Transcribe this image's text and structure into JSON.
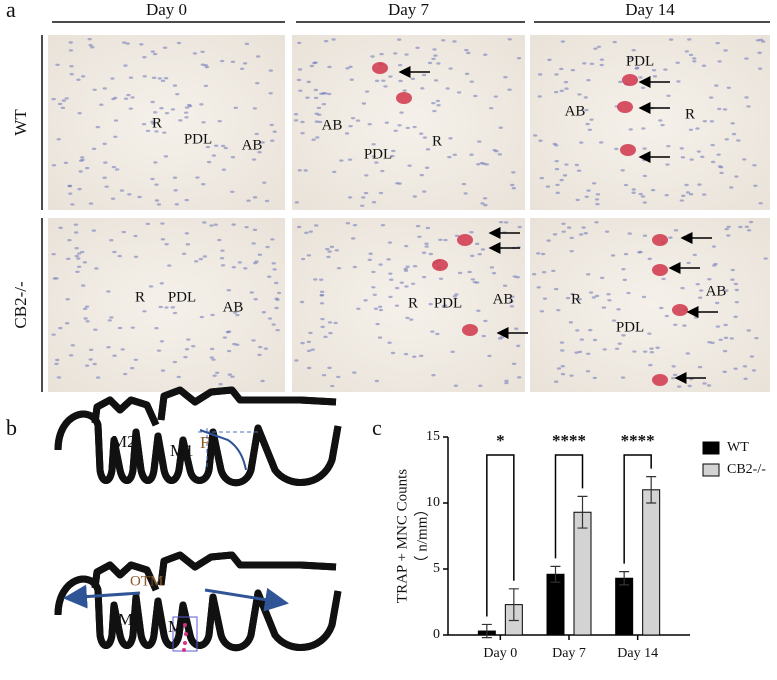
{
  "panel_labels": [
    "a",
    "b",
    "c"
  ],
  "panel_a": {
    "columns": [
      "Day 0",
      "Day 7",
      "Day 14"
    ],
    "rows": [
      "WT",
      "CB2-/-"
    ],
    "images": [
      [
        [
          "R",
          "PDL",
          "AB"
        ],
        [
          "AB",
          "PDL",
          "R"
        ],
        [
          "PDL",
          "AB",
          "R"
        ]
      ],
      [
        [
          "R",
          "PDL",
          "AB"
        ],
        [
          "R",
          "PDL",
          "AB"
        ],
        [
          "R",
          "AB",
          "PDL"
        ]
      ]
    ]
  },
  "panel_b": {
    "labels": [
      "M2",
      "M1",
      "F",
      "OTM",
      "M2",
      "M1"
    ]
  },
  "chart_data": {
    "type": "bar",
    "y_label": "TRAP + MNC Counts",
    "y_unit_label": "（ n/mm）",
    "categories": [
      "Day 0",
      "Day 7",
      "Day 14"
    ],
    "series": [
      {
        "name": "WT",
        "color": "#000000",
        "values": [
          0.3,
          4.6,
          4.3
        ],
        "errors": [
          0.5,
          0.6,
          0.5
        ]
      },
      {
        "name": "CB2-/-",
        "color": "#d3d3d3",
        "values": [
          2.3,
          9.3,
          11.0
        ],
        "errors": [
          1.2,
          1.2,
          1.0
        ]
      }
    ],
    "annotations": [
      "*",
      "****",
      "****"
    ],
    "ylim": [
      0,
      15
    ],
    "yticks": [
      0,
      5,
      10,
      15
    ],
    "legend": "upper right"
  }
}
